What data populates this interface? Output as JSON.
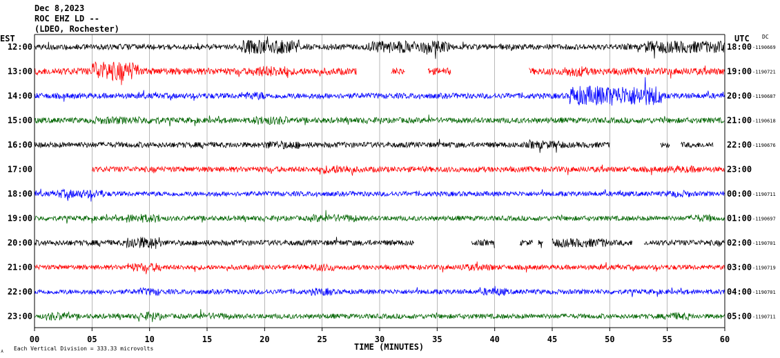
{
  "header": {
    "line1": "Dec 8,2023",
    "line2": "ROC EHZ LD --",
    "line3": "(LDEO, Rochester)"
  },
  "left_axis_title": "EST",
  "right_axis_title": "UTC",
  "right_axis_note": "DC",
  "x_axis_title": "TIME (MINUTES)",
  "footer_note": "Each Vertical Division =  333.33 microvolts",
  "colors": {
    "black": "#000000",
    "red": "#ff0000",
    "blue": "#0000ff",
    "green": "#006400",
    "grid": "#888888"
  },
  "chart_data": {
    "type": "line",
    "title": "Dec 8,2023 ROC EHZ LD -- (LDEO, Rochester)",
    "xlabel": "TIME (MINUTES)",
    "xlim": [
      0,
      60
    ],
    "x_ticks": [
      "00",
      "05",
      "10",
      "15",
      "20",
      "25",
      "30",
      "35",
      "40",
      "45",
      "50",
      "55",
      "60"
    ],
    "grid": true,
    "series": [
      {
        "est": "12:00",
        "utc": "18:00",
        "dc": "-1190669",
        "color": "black",
        "amp": 4,
        "segments": [
          [
            0,
            60
          ]
        ],
        "bursts": [
          [
            18,
            23,
            2.6
          ],
          [
            29,
            36,
            2.2
          ],
          [
            53,
            60,
            2.2
          ]
        ]
      },
      {
        "est": "13:00",
        "utc": "19:00",
        "dc": "-1190721",
        "color": "red",
        "amp": 5,
        "segments": [
          [
            0,
            28
          ],
          [
            31,
            32.2
          ],
          [
            34.2,
            36.2
          ],
          [
            43,
            60
          ]
        ],
        "bursts": [
          [
            5,
            9,
            2.8
          ],
          [
            19,
            22,
            1.6
          ],
          [
            46,
            48,
            1.5
          ]
        ]
      },
      {
        "est": "14:00",
        "utc": "20:00",
        "dc": "-1190687",
        "color": "blue",
        "amp": 4,
        "segments": [
          [
            0,
            60
          ]
        ],
        "bursts": [
          [
            46.5,
            54.5,
            3.6
          ],
          [
            18,
            20,
            1.5
          ]
        ]
      },
      {
        "est": "15:00",
        "utc": "21:00",
        "dc": "-1190618",
        "color": "green",
        "amp": 4,
        "segments": [
          [
            0,
            60
          ]
        ],
        "bursts": [
          [
            5,
            11,
            1.4
          ],
          [
            19,
            22,
            1.6
          ]
        ]
      },
      {
        "est": "16:00",
        "utc": "22:00",
        "dc": "-1190676",
        "color": "black",
        "amp": 4,
        "segments": [
          [
            0,
            50
          ],
          [
            54.4,
            55.2
          ],
          [
            56.2,
            59
          ]
        ],
        "bursts": [
          [
            20,
            23,
            1.5
          ],
          [
            43,
            46,
            1.5
          ]
        ]
      },
      {
        "est": "17:00",
        "utc": "23:00",
        "dc": "",
        "color": "red",
        "amp": 4,
        "segments": [
          [
            5,
            60
          ]
        ],
        "bursts": [
          [
            25,
            28,
            1.6
          ],
          [
            55,
            58,
            1.3
          ]
        ]
      },
      {
        "est": "18:00",
        "utc": "00:00",
        "dc": "-1190711",
        "color": "blue",
        "amp": 3.5,
        "segments": [
          [
            0,
            60
          ]
        ],
        "bursts": [
          [
            2,
            6,
            1.8
          ],
          [
            55,
            57,
            1.5
          ]
        ]
      },
      {
        "est": "19:00",
        "utc": "01:00",
        "dc": "-1190697",
        "color": "green",
        "amp": 3.5,
        "segments": [
          [
            0,
            60
          ]
        ],
        "bursts": [
          [
            8,
            11,
            1.8
          ],
          [
            24,
            28,
            1.6
          ],
          [
            57,
            59,
            1.6
          ]
        ]
      },
      {
        "est": "20:00",
        "utc": "02:00",
        "dc": "-1190701",
        "color": "black",
        "amp": 4,
        "segments": [
          [
            0,
            33
          ],
          [
            38,
            40
          ],
          [
            42.2,
            43.3
          ],
          [
            43.8,
            44.2
          ],
          [
            45,
            52
          ],
          [
            53,
            60
          ]
        ],
        "bursts": [
          [
            8,
            11,
            2.2
          ],
          [
            45,
            50,
            1.6
          ]
        ]
      },
      {
        "est": "21:00",
        "utc": "03:00",
        "dc": "-1190719",
        "color": "red",
        "amp": 3.5,
        "segments": [
          [
            0,
            60
          ]
        ],
        "bursts": [
          [
            8,
            11,
            1.8
          ],
          [
            24,
            26,
            1.6
          ],
          [
            37,
            40,
            1.4
          ]
        ]
      },
      {
        "est": "22:00",
        "utc": "04:00",
        "dc": "-1190701",
        "color": "blue",
        "amp": 3.5,
        "segments": [
          [
            0,
            60
          ]
        ],
        "bursts": [
          [
            9,
            11,
            1.6
          ],
          [
            24,
            26,
            1.6
          ],
          [
            39,
            41,
            1.6
          ]
        ]
      },
      {
        "est": "23:00",
        "utc": "05:00",
        "dc": "-1190711",
        "color": "green",
        "amp": 3.5,
        "segments": [
          [
            0,
            60
          ]
        ],
        "bursts": [
          [
            1,
            3,
            1.8
          ],
          [
            9,
            11,
            1.7
          ],
          [
            14,
            17,
            1.4
          ],
          [
            55,
            57,
            1.6
          ]
        ]
      }
    ]
  }
}
